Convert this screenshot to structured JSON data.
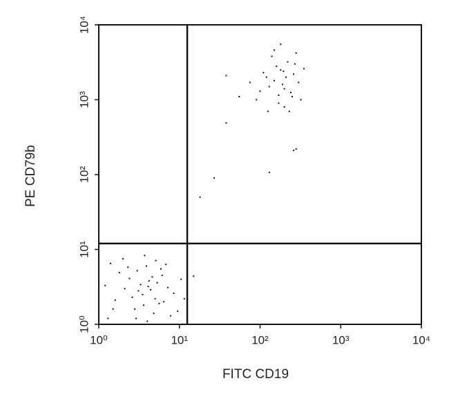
{
  "chart_data": {
    "type": "scatter",
    "x_label": "FITC CD19",
    "y_label": "PE CD79b",
    "xscale": "log",
    "yscale": "log",
    "color": "#111111",
    "xlim": [
      1,
      10000
    ],
    "ylim": [
      1,
      10000
    ],
    "xticks": [
      {
        "value": 1,
        "label": "10⁰"
      },
      {
        "value": 10,
        "label": "10¹"
      },
      {
        "value": 100,
        "label": "10²"
      },
      {
        "value": 1000,
        "label": "10³"
      },
      {
        "value": 10000,
        "label": "10⁴"
      }
    ],
    "yticks": [
      {
        "value": 1,
        "label": "10⁰"
      },
      {
        "value": 10,
        "label": "10¹"
      },
      {
        "value": 100,
        "label": "10²"
      },
      {
        "value": 1000,
        "label": "10³"
      },
      {
        "value": 10000,
        "label": "10⁴"
      }
    ],
    "quadrant": {
      "x": 12.5,
      "y": 12
    },
    "x": [
      2.1,
      3.5,
      4.2,
      5.0,
      2.8,
      6.1,
      3.0,
      4.8,
      1.6,
      7.2,
      3.9,
      2.4,
      5.6,
      4.4,
      1.3,
      8.5,
      3.3,
      2.0,
      6.8,
      4.0,
      1.8,
      5.3,
      9.5,
      2.6,
      3.7,
      1.2,
      6.4,
      4.6,
      2.9,
      10.5,
      3.1,
      5.9,
      1.5,
      7.8,
      4.1,
      2.3,
      11.5,
      3.6,
      5.1,
      1.4,
      150,
      200,
      180,
      250,
      120,
      220,
      170,
      300,
      100,
      260,
      140,
      190,
      230,
      160,
      90,
      280,
      210,
      130,
      350,
      180,
      110,
      240,
      200,
      75,
      320,
      150,
      170,
      270,
      125,
      195,
      27,
      18,
      38,
      38,
      130,
      260,
      15,
      280,
      55
    ],
    "values": [
      3.0,
      2.5,
      3.8,
      2.2,
      1.6,
      4.5,
      5.2,
      1.4,
      2.1,
      3.1,
      6.0,
      4.1,
      1.9,
      2.9,
      1.2,
      2.6,
      3.4,
      7.5,
      6.3,
      1.1,
      4.9,
      3.6,
      1.5,
      2.3,
      8.3,
      3.3,
      2.0,
      4.3,
      1.2,
      4.0,
      2.8,
      5.5,
      1.6,
      1.3,
      3.2,
      5.8,
      2.2,
      1.8,
      7.1,
      6.5,
      1800,
      1400,
      2500,
      1100,
      2000,
      3200,
      900,
      1700,
      1300,
      2200,
      3800,
      1600,
      700,
      2800,
      1000,
      4200,
      2000,
      1500,
      2600,
      5500,
      2300,
      1250,
      800,
      1700,
      1000,
      4600,
      1150,
      3000,
      700,
      2400,
      90,
      50,
      2100,
      490,
      107,
      210,
      4.4,
      220,
      1100
    ]
  }
}
